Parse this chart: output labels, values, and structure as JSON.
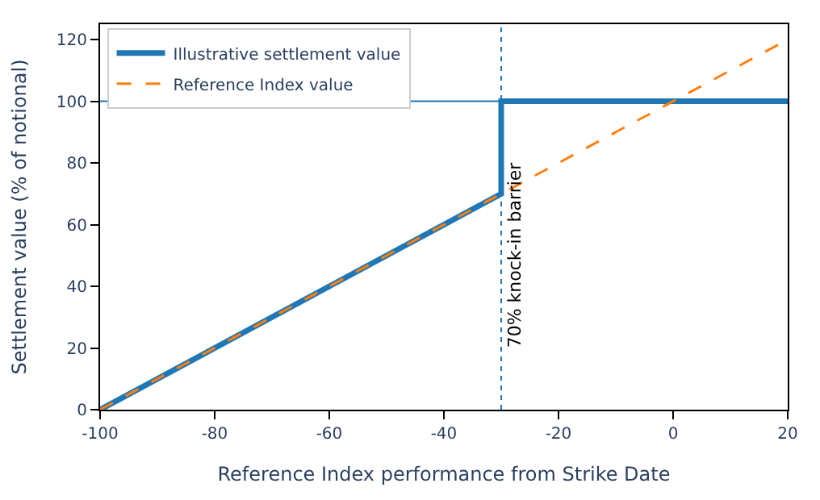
{
  "chart_data": {
    "type": "line",
    "xlabel": "Reference Index performance from Strike Date",
    "ylabel": "Settlement value (% of notional)",
    "series": [
      {
        "name": "Illustrative settlement value",
        "color": "#1f77b4",
        "x": [
          -100,
          -30,
          -30,
          20
        ],
        "values": [
          0,
          70,
          100,
          100
        ],
        "line_style": "solid"
      },
      {
        "name": "Reference Index value",
        "color": "#ff7f0e",
        "x": [
          -100,
          20
        ],
        "values": [
          0,
          120
        ],
        "line_style": "dashed"
      }
    ],
    "ref_lines": [
      {
        "axis": "y",
        "value": 100,
        "color": "#1f77b4"
      },
      {
        "axis": "x",
        "value": -30,
        "label": "70% knock-in barrier",
        "color": "#1f77b4",
        "line_style": "dotted"
      }
    ],
    "xlim": [
      -100,
      20
    ],
    "ylim": [
      0,
      125
    ],
    "xticks": [
      -100,
      -80,
      -60,
      -40,
      -20,
      0,
      20
    ],
    "yticks": [
      0,
      20,
      40,
      60,
      80,
      100,
      120
    ],
    "grid": false,
    "legend": "top left",
    "marker": "none"
  }
}
